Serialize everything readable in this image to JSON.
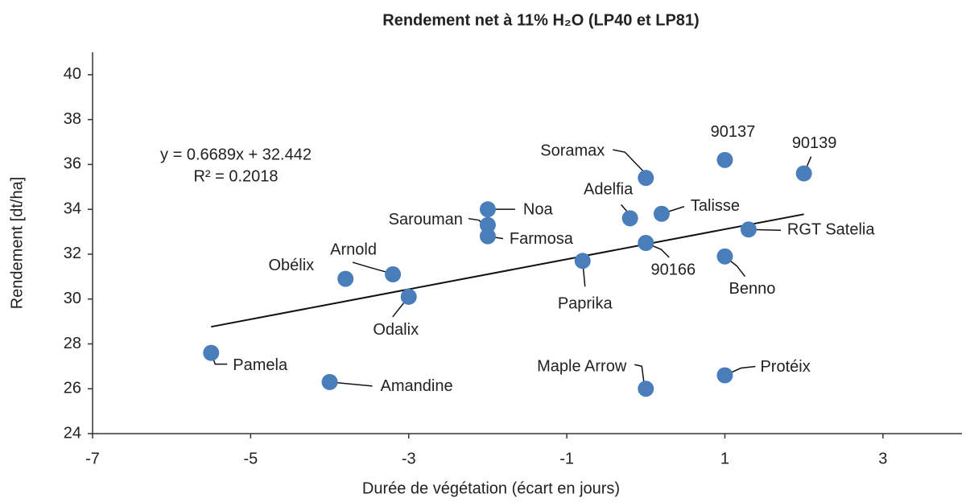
{
  "chart_data": {
    "type": "scatter",
    "title": "Rendement net à 11% H₂O (LP40 et LP81)",
    "x_label": "Durée de végétation (écart en jours)",
    "y_label": "Rendement [dt/ha]",
    "color": "#4a7ebb",
    "names": [
      "Pamela",
      "Amandine",
      "Obélix",
      "Arnold",
      "Odalix",
      "Noa",
      "Sarouman",
      "Farmosa",
      "Paprika",
      "Adelfia",
      "Soramax",
      "90166",
      "Talisse",
      "Maple Arrow",
      "90137",
      "Benno",
      "Protéix",
      "RGT Satelia",
      "90139"
    ],
    "x": [
      -5.5,
      -4,
      -3.8,
      -3.2,
      -3,
      -2,
      -2,
      -2,
      -0.8,
      -0.2,
      0,
      0,
      0.2,
      0,
      1,
      1,
      1,
      1.3,
      2
    ],
    "values": [
      27.6,
      26.3,
      30.9,
      31.1,
      30.1,
      34.0,
      33.3,
      32.8,
      31.7,
      33.6,
      35.4,
      32.5,
      33.8,
      26.0,
      36.2,
      31.9,
      26.6,
      33.1,
      35.6
    ],
    "trendline": {
      "x": [
        -5.5,
        2
      ],
      "y": [
        28.763,
        33.78
      ],
      "equation": "y = 0.6689x + 32.442",
      "r_squared": "R² = 0.2018"
    },
    "xlim": [
      -7,
      4
    ],
    "xticks": [
      -7,
      -5,
      -3,
      -1,
      1,
      3
    ],
    "ylim": [
      24,
      41
    ],
    "yticks": [
      24,
      26,
      28,
      30,
      32,
      34,
      36,
      38,
      40
    ],
    "grid": false
  }
}
